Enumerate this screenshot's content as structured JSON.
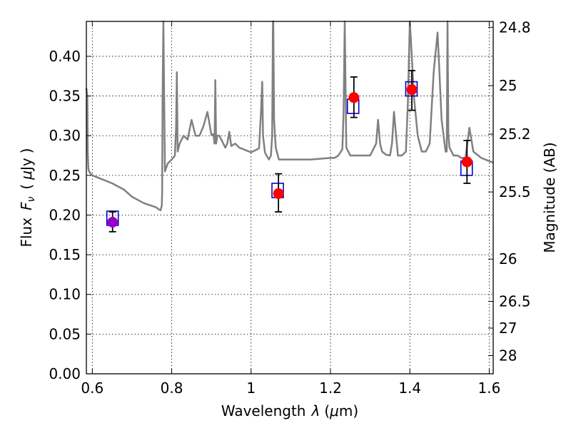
{
  "chart_data": {
    "type": "scatter",
    "xlabel": "Wavelength",
    "xlabel_symbol": "λ",
    "xlabel_unit_open": "(",
    "xlabel_unit_mu": "μ",
    "xlabel_unit_rest": "m)",
    "ylabel": "Flux",
    "ylabel_symbol": "F",
    "ylabel_subscript": "ν",
    "ylabel_unit_open": "(",
    "ylabel_unit_mu": "μ",
    "ylabel_unit_rest": "Jy",
    "ylabel_unit_close": ")",
    "y2label": "Magnitude (AB)",
    "xlim": [
      0.585,
      1.61
    ],
    "ylim": [
      0.0,
      0.444
    ],
    "xticks": [
      "0.6",
      "0.8",
      "1",
      "1.2",
      "1.4",
      "1.6"
    ],
    "xtick_values": [
      0.6,
      0.8,
      1.0,
      1.2,
      1.4,
      1.6
    ],
    "yticks": [
      "0.00",
      "0.05",
      "0.10",
      "0.15",
      "0.20",
      "0.25",
      "0.30",
      "0.35",
      "0.40"
    ],
    "ytick_values": [
      0.0,
      0.05,
      0.1,
      0.15,
      0.2,
      0.25,
      0.3,
      0.35,
      0.4
    ],
    "y2ticks": [
      "24.8",
      "25",
      "25.2",
      "25.5",
      "26",
      "26.5",
      "27",
      "28"
    ],
    "y2tick_values": [
      24.8,
      25.0,
      25.2,
      25.5,
      26.0,
      26.5,
      27.0,
      28.0
    ],
    "grid": true,
    "colors": {
      "spectrum": "#808080",
      "observed": "#ff0000",
      "observed_blue_band": "#9900cc",
      "model": "#0000cc",
      "errorbar": "#000000"
    },
    "series": [
      {
        "name": "model spectrum",
        "style": "line",
        "x": [
          0.585,
          0.5875,
          0.5885,
          0.59,
          0.593,
          0.6,
          0.62,
          0.65,
          0.68,
          0.7,
          0.73,
          0.76,
          0.768,
          0.772,
          0.775,
          0.776,
          0.777,
          0.779,
          0.783,
          0.79,
          0.8,
          0.808,
          0.811,
          0.813,
          0.815,
          0.82,
          0.83,
          0.84,
          0.85,
          0.86,
          0.87,
          0.88,
          0.89,
          0.9,
          0.905,
          0.908,
          0.91,
          0.912,
          0.915,
          0.92,
          0.93,
          0.935,
          0.94,
          0.945,
          0.95,
          0.96,
          0.97,
          0.98,
          1.0,
          1.02,
          1.025,
          1.028,
          1.03,
          1.035,
          1.04,
          1.045,
          1.05,
          1.053,
          1.055,
          1.056,
          1.058,
          1.062,
          1.07,
          1.1,
          1.15,
          1.2,
          1.21,
          1.22,
          1.23,
          1.233,
          1.236,
          1.24,
          1.25,
          1.3,
          1.315,
          1.32,
          1.325,
          1.33,
          1.34,
          1.35,
          1.355,
          1.36,
          1.37,
          1.38,
          1.39,
          1.395,
          1.4,
          1.405,
          1.41,
          1.42,
          1.43,
          1.44,
          1.45,
          1.46,
          1.47,
          1.48,
          1.49,
          1.493,
          1.495,
          1.497,
          1.5,
          1.505,
          1.51,
          1.52,
          1.53,
          1.54,
          1.55,
          1.56,
          1.58,
          1.6,
          1.61
        ],
        "y": [
          0.36,
          0.35,
          0.28,
          0.258,
          0.254,
          0.25,
          0.246,
          0.24,
          0.232,
          0.223,
          0.215,
          0.21,
          0.207,
          0.206,
          0.212,
          0.23,
          0.35,
          0.5,
          0.255,
          0.265,
          0.27,
          0.275,
          0.31,
          0.38,
          0.28,
          0.29,
          0.3,
          0.295,
          0.32,
          0.3,
          0.3,
          0.312,
          0.33,
          0.301,
          0.302,
          0.29,
          0.37,
          0.29,
          0.3,
          0.3,
          0.29,
          0.285,
          0.29,
          0.305,
          0.287,
          0.29,
          0.285,
          0.283,
          0.279,
          0.284,
          0.33,
          0.368,
          0.3,
          0.279,
          0.274,
          0.27,
          0.275,
          0.3,
          0.5,
          0.5,
          0.32,
          0.285,
          0.27,
          0.27,
          0.27,
          0.272,
          0.272,
          0.275,
          0.283,
          0.33,
          0.5,
          0.285,
          0.275,
          0.275,
          0.29,
          0.32,
          0.29,
          0.28,
          0.276,
          0.275,
          0.29,
          0.33,
          0.275,
          0.275,
          0.28,
          0.34,
          0.5,
          0.4,
          0.35,
          0.3,
          0.28,
          0.28,
          0.29,
          0.38,
          0.43,
          0.32,
          0.28,
          0.28,
          0.5,
          0.3,
          0.285,
          0.28,
          0.275,
          0.275,
          0.272,
          0.272,
          0.31,
          0.28,
          0.272,
          0.268,
          0.266
        ]
      },
      {
        "name": "observed",
        "style": "points",
        "x": [
          0.651,
          1.069,
          1.259,
          1.405,
          1.544
        ],
        "y": [
          0.191,
          0.227,
          0.348,
          0.358,
          0.267
        ],
        "yerr_low": [
          0.179,
          0.204,
          0.323,
          0.332,
          0.24
        ],
        "yerr_high": [
          0.204,
          0.252,
          0.374,
          0.382,
          0.294
        ],
        "marker_colors": [
          "#9900cc",
          "#ff0000",
          "#ff0000",
          "#ff0000",
          "#ff0000"
        ]
      },
      {
        "name": "model photometry",
        "style": "squares",
        "x": [
          0.651,
          1.067,
          1.257,
          1.404,
          1.543
        ],
        "y": [
          0.196,
          0.231,
          0.337,
          0.359,
          0.259
        ]
      }
    ]
  }
}
